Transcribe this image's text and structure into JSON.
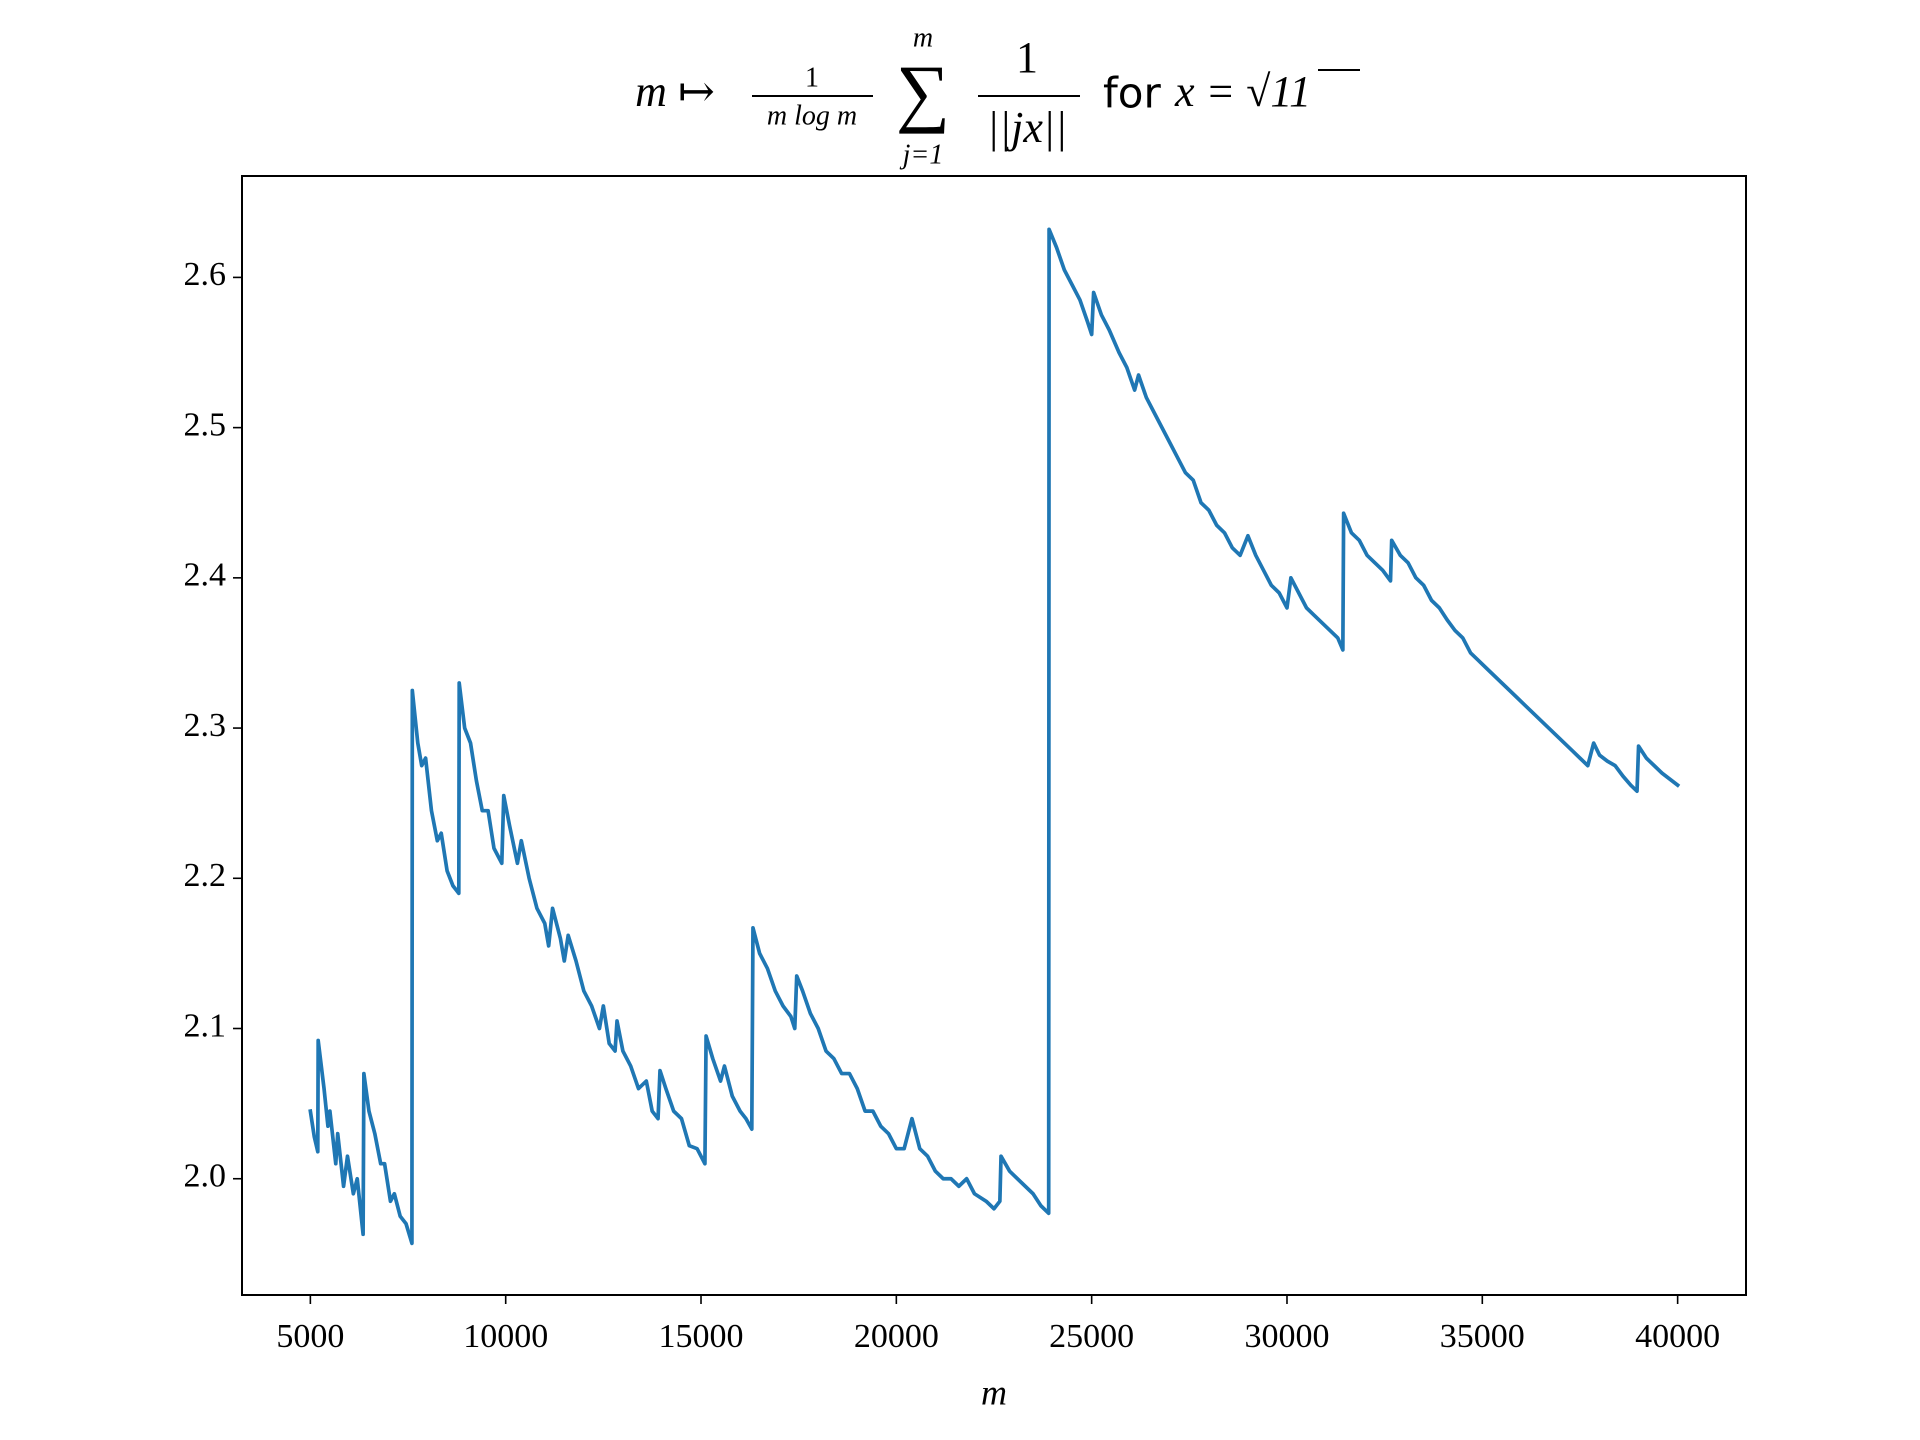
{
  "chart_data": {
    "type": "line",
    "title": {
      "map": "m ↦",
      "coef_num": "1",
      "coef_den": "m log m",
      "sum": "∑",
      "sum_upper": "m",
      "sum_lower": "j=1",
      "term_num": "1",
      "term_den": "||jx||",
      "suffix": "for",
      "condition": "x = √11"
    },
    "x_label": "m",
    "xlim": [
      3250,
      41750
    ],
    "ylim": [
      1.9226,
      2.6675
    ],
    "xticks": [
      5000,
      10000,
      15000,
      20000,
      25000,
      30000,
      35000,
      40000
    ],
    "yticks": [
      {
        "value": 2,
        "label": "2.0"
      },
      2.1,
      2.2,
      2.3,
      2.4,
      2.5,
      2.6
    ],
    "grid": false,
    "series": [
      {
        "color": "#1f77b4",
        "x": [
          5000,
          5100,
          5190,
          5200,
          5350,
          5450,
          5500,
          5650,
          5700,
          5850,
          5950,
          6100,
          6200,
          6350,
          6370,
          6500,
          6650,
          6800,
          6900,
          7050,
          7150,
          7300,
          7450,
          7600,
          7610,
          7750,
          7850,
          7950,
          8100,
          8250,
          8350,
          8500,
          8650,
          8800,
          8810,
          8950,
          9100,
          9250,
          9400,
          9550,
          9700,
          9900,
          9950,
          10100,
          10300,
          10400,
          10600,
          10800,
          11000,
          11100,
          11200,
          11400,
          11500,
          11600,
          11800,
          12000,
          12200,
          12400,
          12500,
          12650,
          12800,
          12850,
          13000,
          13200,
          13400,
          13600,
          13750,
          13900,
          13950,
          14100,
          14300,
          14500,
          14700,
          14900,
          15100,
          15130,
          15300,
          15500,
          15600,
          15800,
          16000,
          16150,
          16300,
          16330,
          16500,
          16700,
          16900,
          17100,
          17300,
          17400,
          17450,
          17600,
          17800,
          18000,
          18200,
          18400,
          18600,
          18800,
          19000,
          19200,
          19400,
          19600,
          19800,
          20000,
          20200,
          20400,
          20600,
          20800,
          21000,
          21200,
          21400,
          21600,
          21800,
          22000,
          22300,
          22500,
          22650,
          22680,
          22900,
          23100,
          23300,
          23500,
          23700,
          23900,
          23910,
          24100,
          24300,
          24500,
          24700,
          24900,
          25000,
          25050,
          25250,
          25450,
          25700,
          25900,
          26100,
          26200,
          26400,
          26600,
          26800,
          27000,
          27200,
          27400,
          27600,
          27800,
          28000,
          28200,
          28400,
          28600,
          28800,
          29000,
          29200,
          29400,
          29600,
          29800,
          30000,
          30100,
          30300,
          30500,
          30700,
          30900,
          31100,
          31300,
          31430,
          31450,
          31650,
          31850,
          32050,
          32250,
          32450,
          32650,
          32680,
          32900,
          33100,
          33300,
          33500,
          33700,
          33900,
          34100,
          34300,
          34500,
          34700,
          34900,
          35100,
          35300,
          35500,
          35700,
          35900,
          36100,
          36300,
          36500,
          36700,
          36900,
          37100,
          37300,
          37500,
          37700,
          37850,
          38000,
          38200,
          38400,
          38600,
          38800,
          38960,
          39000,
          39200,
          39400,
          39600,
          39800,
          40000
        ],
        "values": [
          2.045,
          2.028,
          2.018,
          2.092,
          2.06,
          2.035,
          2.045,
          2.01,
          2.03,
          1.995,
          2.015,
          1.99,
          2.0,
          1.963,
          2.07,
          2.045,
          2.03,
          2.01,
          2.01,
          1.985,
          1.99,
          1.975,
          1.97,
          1.957,
          2.325,
          2.29,
          2.275,
          2.28,
          2.245,
          2.225,
          2.23,
          2.205,
          2.195,
          2.19,
          2.33,
          2.3,
          2.29,
          2.265,
          2.245,
          2.245,
          2.22,
          2.21,
          2.255,
          2.235,
          2.21,
          2.225,
          2.2,
          2.18,
          2.17,
          2.155,
          2.18,
          2.16,
          2.145,
          2.162,
          2.145,
          2.125,
          2.115,
          2.1,
          2.115,
          2.09,
          2.085,
          2.105,
          2.085,
          2.075,
          2.06,
          2.065,
          2.045,
          2.04,
          2.072,
          2.06,
          2.045,
          2.04,
          2.022,
          2.02,
          2.01,
          2.095,
          2.08,
          2.065,
          2.075,
          2.055,
          2.045,
          2.04,
          2.033,
          2.167,
          2.15,
          2.14,
          2.125,
          2.115,
          2.108,
          2.1,
          2.135,
          2.125,
          2.11,
          2.1,
          2.085,
          2.08,
          2.07,
          2.07,
          2.06,
          2.045,
          2.045,
          2.035,
          2.03,
          2.02,
          2.02,
          2.04,
          2.02,
          2.015,
          2.005,
          2.0,
          2.0,
          1.995,
          2.0,
          1.99,
          1.985,
          1.98,
          1.985,
          2.015,
          2.005,
          2.0,
          1.995,
          1.99,
          1.982,
          1.977,
          2.632,
          2.62,
          2.605,
          2.595,
          2.585,
          2.57,
          2.562,
          2.59,
          2.575,
          2.565,
          2.55,
          2.54,
          2.525,
          2.535,
          2.52,
          2.51,
          2.5,
          2.49,
          2.48,
          2.47,
          2.465,
          2.45,
          2.445,
          2.435,
          2.43,
          2.42,
          2.415,
          2.428,
          2.415,
          2.405,
          2.395,
          2.39,
          2.38,
          2.4,
          2.39,
          2.38,
          2.375,
          2.37,
          2.365,
          2.36,
          2.352,
          2.443,
          2.43,
          2.425,
          2.415,
          2.41,
          2.405,
          2.398,
          2.425,
          2.415,
          2.41,
          2.4,
          2.395,
          2.385,
          2.38,
          2.372,
          2.365,
          2.36,
          2.35,
          2.345,
          2.34,
          2.335,
          2.33,
          2.325,
          2.32,
          2.315,
          2.31,
          2.305,
          2.3,
          2.295,
          2.29,
          2.285,
          2.28,
          2.275,
          2.29,
          2.282,
          2.278,
          2.275,
          2.268,
          2.262,
          2.258,
          2.288,
          2.28,
          2.275,
          2.27,
          2.266,
          2.262
        ]
      }
    ]
  }
}
